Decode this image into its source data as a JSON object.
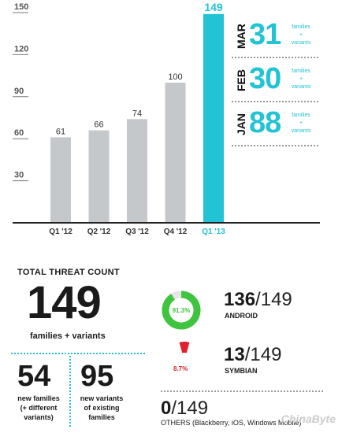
{
  "chart_data": {
    "type": "bar",
    "categories": [
      "Q1 '12",
      "Q2 '12",
      "Q3 '12",
      "Q4 '12",
      "Q1 '13"
    ],
    "values": [
      61,
      66,
      74,
      100,
      149
    ],
    "highlight_index": 4,
    "yticks": [
      30,
      60,
      90,
      120,
      150
    ],
    "ylim": [
      0,
      150
    ],
    "colors": {
      "bar": "#c5c8cb",
      "highlight": "#22c3d4",
      "axis": "#222222"
    }
  },
  "months": [
    {
      "name": "MAR",
      "value": "31",
      "desc_line1": "families",
      "desc_line2": "+",
      "desc_line3": "variants"
    },
    {
      "name": "FEB",
      "value": "30",
      "desc_line1": "families",
      "desc_line2": "+",
      "desc_line3": "variants"
    },
    {
      "name": "JAN",
      "value": "88",
      "desc_line1": "families",
      "desc_line2": "+",
      "desc_line3": "variants"
    }
  ],
  "total": {
    "title": "TOTAL THREAT COUNT",
    "count": "149",
    "desc": "families + variants",
    "new_families": {
      "value": "54",
      "line1": "new families",
      "line2": "(+ different",
      "line3": "variants)"
    },
    "new_variants": {
      "value": "95",
      "line1": "new variants",
      "line2": "of existing",
      "line3": "families"
    }
  },
  "platforms": [
    {
      "count": "136",
      "total": "149",
      "name": "ANDROID",
      "percent_label": "91.3%",
      "percent": 91.3,
      "color": "#3ec43e"
    },
    {
      "count": "13",
      "total": "149",
      "name": "SYMBIAN",
      "percent_label": "8.7%",
      "percent": 8.7,
      "color": "#e0202a"
    },
    {
      "count": "0",
      "total": "149",
      "name": "OTHERS (Blackberry, iOS, Windows Mobile)"
    }
  ],
  "watermark": "ChinaByte"
}
